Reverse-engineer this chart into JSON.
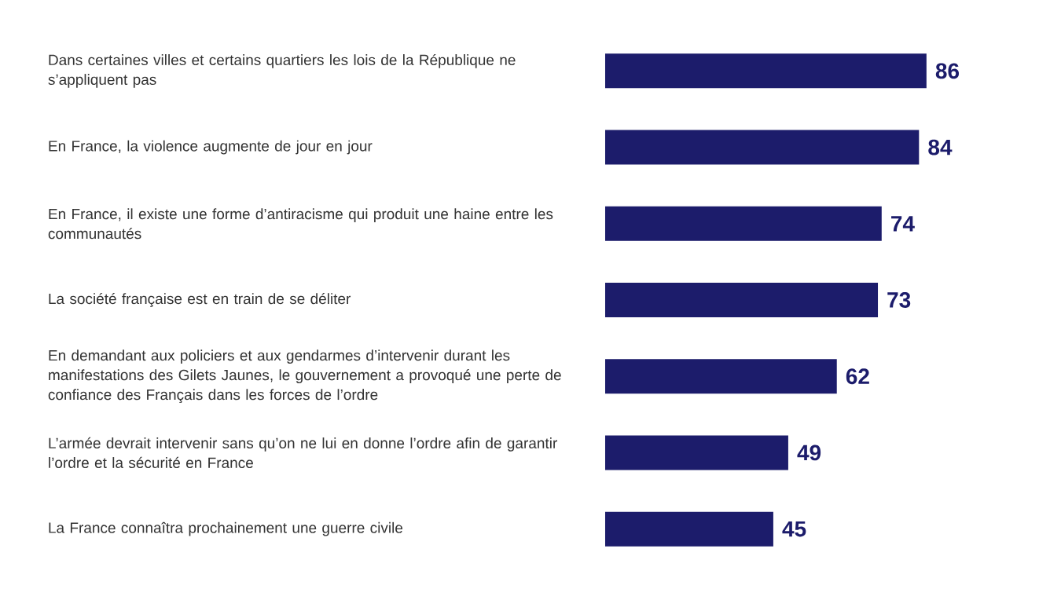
{
  "chart_data": {
    "type": "bar",
    "orientation": "horizontal",
    "data_labels": true,
    "categories": [
      "Dans certaines villes et certains quartiers les lois de la République ne s’appliquent pas",
      "En France, la violence augmente de jour en jour",
      "En France, il existe une forme d’antiracisme qui produit une haine entre les communautés",
      "La société française est en train de se déliter",
      "En demandant aux policiers et aux gendarmes d’intervenir durant les manifestations des Gilets Jaunes, le gouvernement a provoqué une perte de confiance des Français dans les forces de l’ordre",
      "L’armée devrait intervenir sans qu’on ne lui en donne l’ordre afin de garantir l’ordre et la sécurité en France",
      "La France connaîtra prochainement une guerre civile"
    ],
    "values": [
      86,
      84,
      74,
      73,
      62,
      49,
      45
    ],
    "color": "#1c1c6b"
  }
}
